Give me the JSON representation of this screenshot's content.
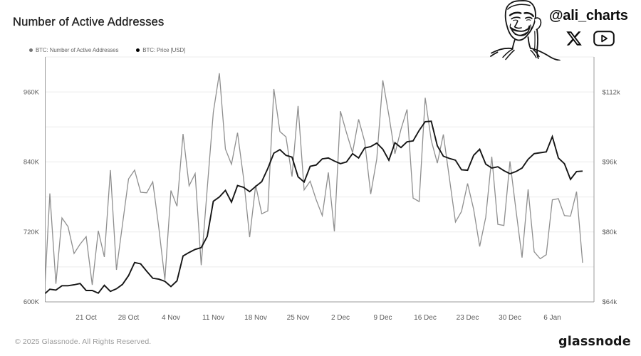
{
  "title": "Number of Active Addresses",
  "attribution": {
    "handle": "@ali_charts",
    "icons": [
      "face-illustration",
      "x-logo",
      "play-button"
    ]
  },
  "legend": [
    {
      "label": "BTC: Number of Active Addresses",
      "color": "#757575"
    },
    {
      "label": "BTC: Price [USD]",
      "color": "#000000"
    }
  ],
  "footer": {
    "copyright": "© 2025 Glassnode. All Rights Reserved.",
    "brand": "glassnode"
  },
  "colors": {
    "addresses_series": "#8f8f8f",
    "price_series": "#151515",
    "gridline": "#ececec",
    "axis_line": "#9b9b9b",
    "tick_label": "#5c5c5c"
  },
  "chart_data": {
    "type": "line",
    "title": "Number of Active Addresses",
    "x": [
      "2024-10-14",
      "2024-10-15",
      "2024-10-16",
      "2024-10-17",
      "2024-10-18",
      "2024-10-19",
      "2024-10-20",
      "2024-10-21",
      "2024-10-22",
      "2024-10-23",
      "2024-10-24",
      "2024-10-25",
      "2024-10-26",
      "2024-10-27",
      "2024-10-28",
      "2024-10-29",
      "2024-10-30",
      "2024-10-31",
      "2024-11-01",
      "2024-11-02",
      "2024-11-03",
      "2024-11-04",
      "2024-11-05",
      "2024-11-06",
      "2024-11-07",
      "2024-11-08",
      "2024-11-09",
      "2024-11-10",
      "2024-11-11",
      "2024-11-12",
      "2024-11-13",
      "2024-11-14",
      "2024-11-15",
      "2024-11-16",
      "2024-11-17",
      "2024-11-18",
      "2024-11-19",
      "2024-11-20",
      "2024-11-21",
      "2024-11-22",
      "2024-11-23",
      "2024-11-24",
      "2024-11-25",
      "2024-11-26",
      "2024-11-27",
      "2024-11-28",
      "2024-11-29",
      "2024-11-30",
      "2024-12-01",
      "2024-12-02",
      "2024-12-03",
      "2024-12-04",
      "2024-12-05",
      "2024-12-06",
      "2024-12-07",
      "2024-12-08",
      "2024-12-09",
      "2024-12-10",
      "2024-12-11",
      "2024-12-12",
      "2024-12-13",
      "2024-12-14",
      "2024-12-15",
      "2024-12-16",
      "2024-12-17",
      "2024-12-18",
      "2024-12-19",
      "2024-12-20",
      "2024-12-21",
      "2024-12-22",
      "2024-12-23",
      "2024-12-24",
      "2024-12-25",
      "2024-12-26",
      "2024-12-27",
      "2024-12-28",
      "2024-12-29",
      "2024-12-30",
      "2024-12-31",
      "2025-01-01",
      "2025-01-02",
      "2025-01-03",
      "2025-01-04",
      "2025-01-05",
      "2025-01-06",
      "2025-01-07",
      "2025-01-08",
      "2025-01-09",
      "2025-01-10",
      "2025-01-11"
    ],
    "series": [
      {
        "name": "BTC: Number of Active Addresses",
        "axis": "left",
        "color": "#8f8f8f",
        "values": [
          630000,
          786000,
          631000,
          744000,
          729000,
          683000,
          699000,
          712000,
          629000,
          722000,
          677000,
          826000,
          655000,
          733000,
          811000,
          826000,
          788000,
          787000,
          806000,
          727000,
          638000,
          791000,
          764000,
          888000,
          799000,
          820000,
          663000,
          795000,
          925000,
          992000,
          862000,
          836000,
          890000,
          812000,
          711000,
          800000,
          751000,
          756000,
          965000,
          892000,
          883000,
          815000,
          936000,
          792000,
          807000,
          775000,
          748000,
          822000,
          721000,
          927000,
          890000,
          856000,
          913000,
          875000,
          785000,
          845000,
          980000,
          920000,
          854000,
          896000,
          930000,
          778000,
          772000,
          950000,
          877000,
          838000,
          887000,
          812000,
          737000,
          755000,
          803000,
          759000,
          695000,
          745000,
          849000,
          733000,
          731000,
          841000,
          757000,
          676000,
          793000,
          686000,
          674000,
          681000,
          775000,
          777000,
          748000,
          747000,
          789000,
          667000
        ]
      },
      {
        "name": "BTC: Price [USD]",
        "axis": "right",
        "color": "#151515",
        "values": [
          65900,
          66900,
          66700,
          67700,
          67700,
          67900,
          68200,
          66600,
          66600,
          66000,
          67800,
          66400,
          67000,
          68000,
          70000,
          73000,
          72700,
          71000,
          69400,
          69200,
          68700,
          67500,
          68800,
          74500,
          75300,
          76000,
          76400,
          79000,
          87000,
          88000,
          89500,
          86800,
          90600,
          90200,
          89200,
          90400,
          91500,
          94500,
          98000,
          98800,
          97500,
          97100,
          92600,
          91400,
          95000,
          95300,
          96700,
          96900,
          96200,
          95600,
          96000,
          97900,
          96900,
          99200,
          99500,
          100300,
          98900,
          96400,
          100400,
          99300,
          100600,
          100800,
          103200,
          105200,
          105300,
          99700,
          97300,
          96800,
          96400,
          94200,
          94100,
          97500,
          98900,
          95500,
          94600,
          94900,
          94000,
          93300,
          93800,
          94600,
          96600,
          97900,
          98100,
          98300,
          101800,
          96900,
          95600,
          92000,
          93800,
          93900
        ]
      }
    ],
    "left_axis": {
      "label": "",
      "ticks": [
        {
          "value": 600000,
          "label": "600K"
        },
        {
          "value": 720000,
          "label": "720K"
        },
        {
          "value": 840000,
          "label": "840K"
        },
        {
          "value": 960000,
          "label": "960K"
        }
      ],
      "range": [
        600000,
        1020000
      ]
    },
    "right_axis": {
      "label": "",
      "ticks": [
        {
          "value": 64000,
          "label": "$64k"
        },
        {
          "value": 80000,
          "label": "$80k"
        },
        {
          "value": 96000,
          "label": "$96k"
        },
        {
          "value": 112000,
          "label": "$112k"
        }
      ],
      "range": [
        64000,
        120000
      ]
    },
    "x_ticks": [
      {
        "date": "2024-10-21",
        "label": "21 Oct"
      },
      {
        "date": "2024-10-28",
        "label": "28 Oct"
      },
      {
        "date": "2024-11-04",
        "label": "4 Nov"
      },
      {
        "date": "2024-11-11",
        "label": "11 Nov"
      },
      {
        "date": "2024-11-18",
        "label": "18 Nov"
      },
      {
        "date": "2024-11-25",
        "label": "25 Nov"
      },
      {
        "date": "2024-12-02",
        "label": "2 Dec"
      },
      {
        "date": "2024-12-09",
        "label": "9 Dec"
      },
      {
        "date": "2024-12-16",
        "label": "16 Dec"
      },
      {
        "date": "2024-12-23",
        "label": "23 Dec"
      },
      {
        "date": "2024-12-30",
        "label": "30 Dec"
      },
      {
        "date": "2025-01-06",
        "label": "6 Jan"
      }
    ],
    "grid": {
      "horizontal_minor_step_left": 60000,
      "horizontal_minor_step_right": 8000,
      "vertical": false
    },
    "legend_position": "top-left"
  }
}
